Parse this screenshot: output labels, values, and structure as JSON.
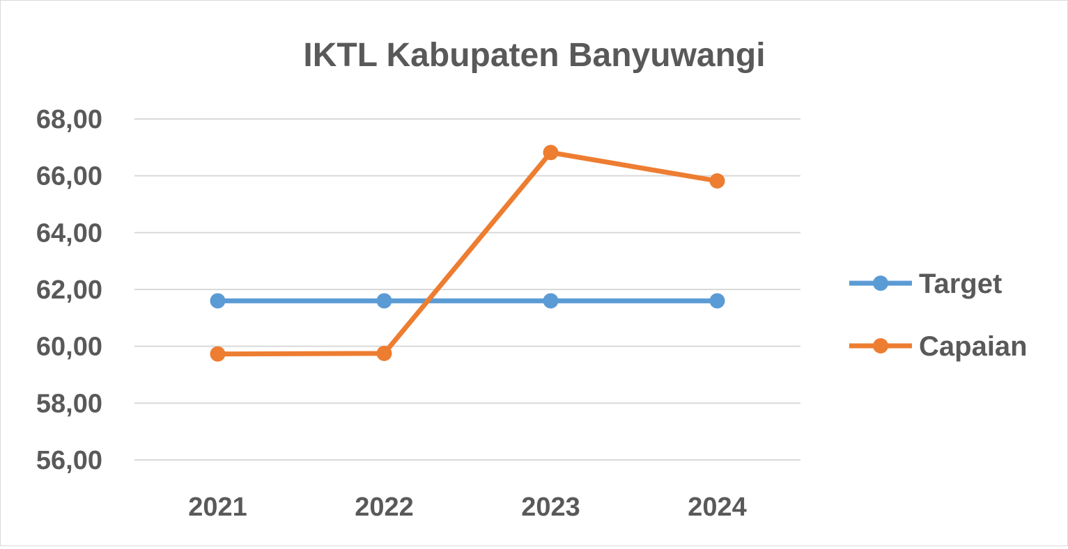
{
  "chart_data": {
    "type": "line",
    "title": "IKTL Kabupaten Banyuwangi",
    "xlabel": "",
    "ylabel": "",
    "categories": [
      "2021",
      "2022",
      "2023",
      "2024"
    ],
    "series": [
      {
        "name": "Target",
        "values": [
          61.6,
          61.6,
          61.6,
          61.6
        ],
        "color": "#5b9bd5"
      },
      {
        "name": "Capaian",
        "values": [
          59.73,
          59.75,
          66.82,
          65.82
        ],
        "color": "#ed7d31"
      }
    ],
    "ylim": [
      56,
      68
    ],
    "yticks": [
      "56,00",
      "58,00",
      "60,00",
      "62,00",
      "64,00",
      "66,00",
      "68,00"
    ],
    "ytick_values": [
      56,
      58,
      60,
      62,
      64,
      66,
      68
    ],
    "grid": true,
    "legend_position": "right",
    "gridline_color": "#d9d9d9"
  }
}
